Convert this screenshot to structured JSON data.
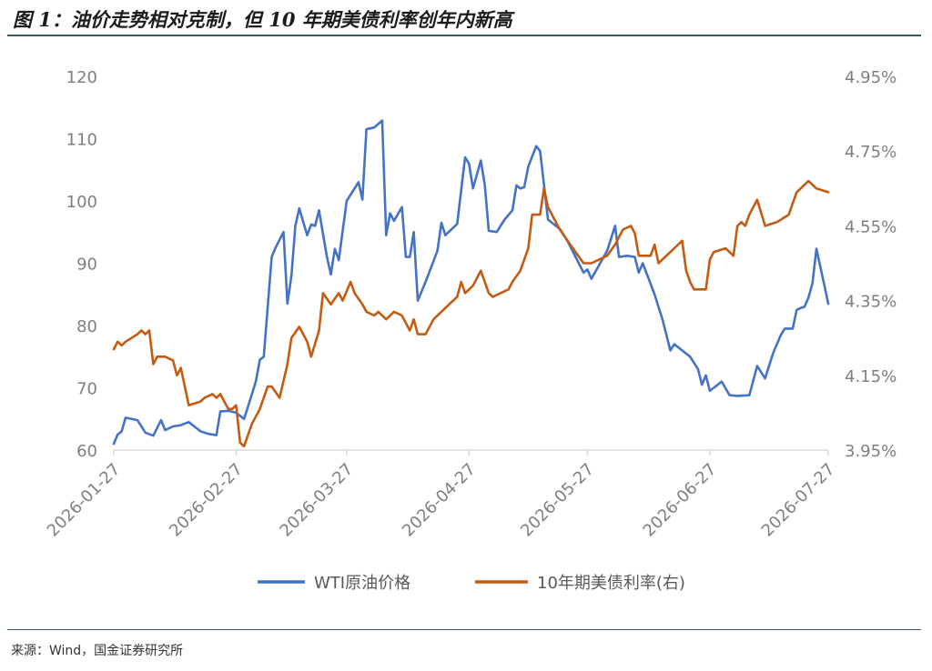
{
  "figure_title": "图 1：油价走势相对克制，但 10 年期美债利率创年内新高",
  "source": "来源：Wind，国金证券研究所",
  "colors": {
    "wti": "#4472C4",
    "yield": "#C55A11",
    "axis": "#D9D9D9",
    "tick": "#7F7F7F",
    "rule": "#2F5D62"
  },
  "chart_data": {
    "type": "line",
    "title": "",
    "xlabel": "",
    "x_ticks": [
      "2026-01-27",
      "2026-02-27",
      "2026-03-27",
      "2026-04-27",
      "2026-05-27",
      "2026-06-27",
      "2026-07-27"
    ],
    "xlim": [
      "2026-01-27",
      "2026-07-27"
    ],
    "y_left": {
      "lim": [
        60,
        120
      ],
      "ticks": [
        "60",
        "70",
        "80",
        "90",
        "100",
        "110",
        "120"
      ]
    },
    "y_right": {
      "lim": [
        3.95,
        4.95
      ],
      "ticks": [
        "3.95%",
        "4.15%",
        "4.35%",
        "4.55%",
        "4.75%",
        "4.95%"
      ]
    },
    "grid": false,
    "legend_position": "bottom",
    "series": [
      {
        "name": "WTI原油价格",
        "axis": "left",
        "points": [
          [
            "2026-01-27",
            61.0
          ],
          [
            "2026-01-28",
            62.5
          ],
          [
            "2026-01-29",
            63.0
          ],
          [
            "2026-01-30",
            65.2
          ],
          [
            "2026-02-02",
            64.8
          ],
          [
            "2026-02-04",
            62.8
          ],
          [
            "2026-02-06",
            62.3
          ],
          [
            "2026-02-08",
            64.8
          ],
          [
            "2026-02-09",
            63.2
          ],
          [
            "2026-02-11",
            63.8
          ],
          [
            "2026-02-13",
            64.0
          ],
          [
            "2026-02-15",
            64.5
          ],
          [
            "2026-02-16",
            64.0
          ],
          [
            "2026-02-18",
            63.0
          ],
          [
            "2026-02-20",
            62.6
          ],
          [
            "2026-02-22",
            62.4
          ],
          [
            "2026-02-23",
            66.2
          ],
          [
            "2026-02-25",
            66.3
          ],
          [
            "2026-02-27",
            66.0
          ],
          [
            "2026-03-01",
            65.0
          ],
          [
            "2026-03-02",
            67.0
          ],
          [
            "2026-03-04",
            71.0
          ],
          [
            "2026-03-05",
            74.5
          ],
          [
            "2026-03-06",
            75.0
          ],
          [
            "2026-03-08",
            91.0
          ],
          [
            "2026-03-09",
            92.5
          ],
          [
            "2026-03-11",
            95.0
          ],
          [
            "2026-03-12",
            83.5
          ],
          [
            "2026-03-13",
            88.0
          ],
          [
            "2026-03-14",
            96.0
          ],
          [
            "2026-03-15",
            98.8
          ],
          [
            "2026-03-17",
            94.5
          ],
          [
            "2026-03-18",
            96.2
          ],
          [
            "2026-03-19",
            96.0
          ],
          [
            "2026-03-20",
            98.5
          ],
          [
            "2026-03-22",
            91.0
          ],
          [
            "2026-03-23",
            88.2
          ],
          [
            "2026-03-24",
            92.3
          ],
          [
            "2026-03-25",
            90.5
          ],
          [
            "2026-03-27",
            100.0
          ],
          [
            "2026-03-30",
            103.0
          ],
          [
            "2026-03-31",
            100.2
          ],
          [
            "2026-04-01",
            111.5
          ],
          [
            "2026-04-03",
            111.8
          ],
          [
            "2026-04-05",
            112.9
          ],
          [
            "2026-04-06",
            94.5
          ],
          [
            "2026-04-07",
            98.0
          ],
          [
            "2026-04-08",
            96.8
          ],
          [
            "2026-04-10",
            99.0
          ],
          [
            "2026-04-11",
            91.0
          ],
          [
            "2026-04-12",
            91.0
          ],
          [
            "2026-04-13",
            95.0
          ],
          [
            "2026-04-14",
            84.0
          ],
          [
            "2026-04-16",
            87.0
          ],
          [
            "2026-04-19",
            92.0
          ],
          [
            "2026-04-20",
            96.5
          ],
          [
            "2026-04-21",
            94.5
          ],
          [
            "2026-04-24",
            96.3
          ],
          [
            "2026-04-26",
            107.0
          ],
          [
            "2026-04-27",
            106.0
          ],
          [
            "2026-04-28",
            102.0
          ],
          [
            "2026-04-30",
            106.5
          ],
          [
            "2026-05-01",
            102.5
          ],
          [
            "2026-05-02",
            95.2
          ],
          [
            "2026-05-04",
            95.0
          ],
          [
            "2026-05-06",
            97.0
          ],
          [
            "2026-05-08",
            98.5
          ],
          [
            "2026-05-09",
            102.5
          ],
          [
            "2026-05-10",
            102.0
          ],
          [
            "2026-05-11",
            102.2
          ],
          [
            "2026-05-12",
            105.5
          ],
          [
            "2026-05-14",
            108.8
          ],
          [
            "2026-05-15",
            108.0
          ],
          [
            "2026-05-17",
            97.0
          ],
          [
            "2026-05-18",
            96.5
          ],
          [
            "2026-05-20",
            95.5
          ],
          [
            "2026-05-22",
            93.5
          ],
          [
            "2026-05-26",
            88.5
          ],
          [
            "2026-05-27",
            89.0
          ],
          [
            "2026-05-28",
            87.5
          ],
          [
            "2026-06-01",
            92.0
          ],
          [
            "2026-06-03",
            96.0
          ],
          [
            "2026-06-04",
            91.0
          ],
          [
            "2026-06-06",
            91.2
          ],
          [
            "2026-06-08",
            91.0
          ],
          [
            "2026-06-09",
            88.5
          ],
          [
            "2026-06-10",
            90.0
          ],
          [
            "2026-06-13",
            85.0
          ],
          [
            "2026-06-15",
            81.0
          ],
          [
            "2026-06-17",
            76.0
          ],
          [
            "2026-06-18",
            77.0
          ],
          [
            "2026-06-22",
            75.0
          ],
          [
            "2026-06-24",
            73.0
          ],
          [
            "2026-06-25",
            70.5
          ],
          [
            "2026-06-26",
            72.0
          ],
          [
            "2026-06-27",
            69.5
          ],
          [
            "2026-06-29",
            70.5
          ],
          [
            "2026-06-30",
            71.0
          ],
          [
            "2026-07-02",
            68.8
          ],
          [
            "2026-07-04",
            68.7
          ],
          [
            "2026-07-07",
            68.8
          ],
          [
            "2026-07-09",
            73.5
          ],
          [
            "2026-07-11",
            71.5
          ],
          [
            "2026-07-13",
            75.5
          ],
          [
            "2026-07-15",
            78.5
          ],
          [
            "2026-07-16",
            79.5
          ],
          [
            "2026-07-18",
            79.5
          ],
          [
            "2026-07-19",
            82.5
          ],
          [
            "2026-07-20",
            82.8
          ],
          [
            "2026-07-21",
            83.0
          ],
          [
            "2026-07-22",
            84.5
          ],
          [
            "2026-07-23",
            86.8
          ],
          [
            "2026-07-24",
            92.3
          ],
          [
            "2026-07-26",
            86.5
          ],
          [
            "2026-07-27",
            83.5
          ]
        ]
      },
      {
        "name": "10年期美债利率(右)",
        "axis": "right",
        "points": [
          [
            "2026-01-27",
            4.22
          ],
          [
            "2026-01-28",
            4.24
          ],
          [
            "2026-01-29",
            4.23
          ],
          [
            "2026-01-30",
            4.24
          ],
          [
            "2026-02-02",
            4.26
          ],
          [
            "2026-02-03",
            4.27
          ],
          [
            "2026-02-04",
            4.26
          ],
          [
            "2026-02-05",
            4.27
          ],
          [
            "2026-02-06",
            4.18
          ],
          [
            "2026-02-07",
            4.2
          ],
          [
            "2026-02-09",
            4.2
          ],
          [
            "2026-02-11",
            4.19
          ],
          [
            "2026-02-12",
            4.15
          ],
          [
            "2026-02-13",
            4.17
          ],
          [
            "2026-02-15",
            4.07
          ],
          [
            "2026-02-18",
            4.08
          ],
          [
            "2026-02-19",
            4.09
          ],
          [
            "2026-02-21",
            4.1
          ],
          [
            "2026-02-22",
            4.09
          ],
          [
            "2026-02-23",
            4.1
          ],
          [
            "2026-02-24",
            4.08
          ],
          [
            "2026-02-25",
            4.06
          ],
          [
            "2026-02-26",
            4.06
          ],
          [
            "2026-02-27",
            4.07
          ],
          [
            "2026-02-28",
            3.97
          ],
          [
            "2026-03-01",
            3.96
          ],
          [
            "2026-03-03",
            4.02
          ],
          [
            "2026-03-05",
            4.06
          ],
          [
            "2026-03-07",
            4.12
          ],
          [
            "2026-03-08",
            4.12
          ],
          [
            "2026-03-10",
            4.09
          ],
          [
            "2026-03-12",
            4.18
          ],
          [
            "2026-03-13",
            4.25
          ],
          [
            "2026-03-15",
            4.28
          ],
          [
            "2026-03-17",
            4.24
          ],
          [
            "2026-03-18",
            4.2
          ],
          [
            "2026-03-20",
            4.27
          ],
          [
            "2026-03-21",
            4.37
          ],
          [
            "2026-03-23",
            4.34
          ],
          [
            "2026-03-25",
            4.37
          ],
          [
            "2026-03-26",
            4.35
          ],
          [
            "2026-03-28",
            4.4
          ],
          [
            "2026-03-29",
            4.37
          ],
          [
            "2026-03-31",
            4.34
          ],
          [
            "2026-04-01",
            4.32
          ],
          [
            "2026-04-03",
            4.31
          ],
          [
            "2026-04-04",
            4.32
          ],
          [
            "2026-04-06",
            4.3
          ],
          [
            "2026-04-08",
            4.32
          ],
          [
            "2026-04-10",
            4.31
          ],
          [
            "2026-04-12",
            4.27
          ],
          [
            "2026-04-13",
            4.3
          ],
          [
            "2026-04-14",
            4.26
          ],
          [
            "2026-04-16",
            4.26
          ],
          [
            "2026-04-18",
            4.3
          ],
          [
            "2026-04-19",
            4.31
          ],
          [
            "2026-04-20",
            4.32
          ],
          [
            "2026-04-22",
            4.34
          ],
          [
            "2026-04-24",
            4.36
          ],
          [
            "2026-04-25",
            4.4
          ],
          [
            "2026-04-26",
            4.37
          ],
          [
            "2026-04-28",
            4.39
          ],
          [
            "2026-04-30",
            4.43
          ],
          [
            "2026-05-02",
            4.37
          ],
          [
            "2026-05-03",
            4.36
          ],
          [
            "2026-05-05",
            4.37
          ],
          [
            "2026-05-07",
            4.38
          ],
          [
            "2026-05-08",
            4.4
          ],
          [
            "2026-05-10",
            4.43
          ],
          [
            "2026-05-12",
            4.49
          ],
          [
            "2026-05-13",
            4.58
          ],
          [
            "2026-05-15",
            4.58
          ],
          [
            "2026-05-16",
            4.65
          ],
          [
            "2026-05-17",
            4.6
          ],
          [
            "2026-05-20",
            4.54
          ],
          [
            "2026-05-24",
            4.48
          ],
          [
            "2026-05-26",
            4.45
          ],
          [
            "2026-05-28",
            4.45
          ],
          [
            "2026-06-01",
            4.47
          ],
          [
            "2026-06-03",
            4.5
          ],
          [
            "2026-06-05",
            4.54
          ],
          [
            "2026-06-07",
            4.55
          ],
          [
            "2026-06-08",
            4.53
          ],
          [
            "2026-06-09",
            4.47
          ],
          [
            "2026-06-12",
            4.47
          ],
          [
            "2026-06-13",
            4.5
          ],
          [
            "2026-06-14",
            4.45
          ],
          [
            "2026-06-17",
            4.48
          ],
          [
            "2026-06-20",
            4.51
          ],
          [
            "2026-06-21",
            4.43
          ],
          [
            "2026-06-22",
            4.4
          ],
          [
            "2026-06-23",
            4.38
          ],
          [
            "2026-06-26",
            4.38
          ],
          [
            "2026-06-27",
            4.46
          ],
          [
            "2026-06-28",
            4.48
          ],
          [
            "2026-07-01",
            4.49
          ],
          [
            "2026-07-03",
            4.47
          ],
          [
            "2026-07-04",
            4.55
          ],
          [
            "2026-07-05",
            4.56
          ],
          [
            "2026-07-06",
            4.55
          ],
          [
            "2026-07-07",
            4.58
          ],
          [
            "2026-07-09",
            4.62
          ],
          [
            "2026-07-11",
            4.55
          ],
          [
            "2026-07-14",
            4.56
          ],
          [
            "2026-07-17",
            4.58
          ],
          [
            "2026-07-19",
            4.64
          ],
          [
            "2026-07-22",
            4.67
          ],
          [
            "2026-07-24",
            4.65
          ],
          [
            "2026-07-27",
            4.64
          ]
        ]
      }
    ]
  }
}
